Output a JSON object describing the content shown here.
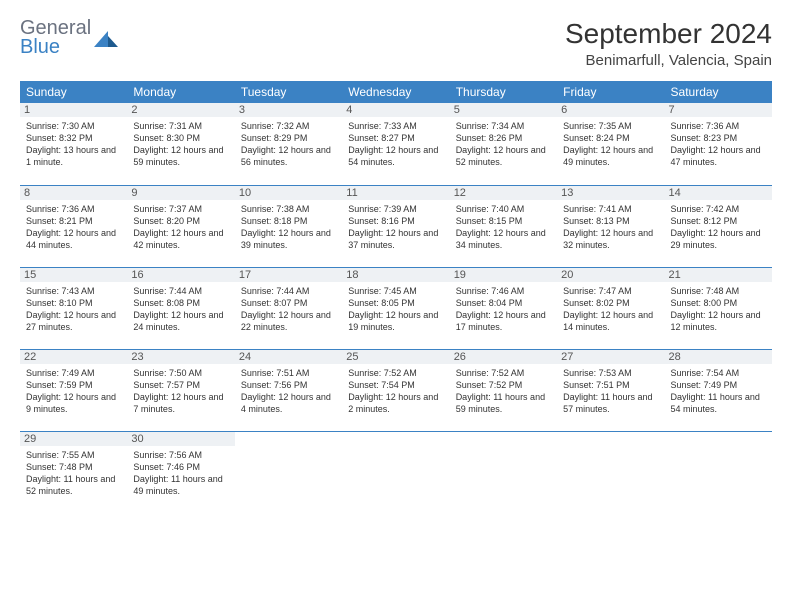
{
  "brand": {
    "general": "General",
    "blue": "Blue"
  },
  "title": "September 2024",
  "location": "Benimarfull, Valencia, Spain",
  "colors": {
    "header_bg": "#3b82c4",
    "header_fg": "#ffffff",
    "daynum_bg": "#eef1f4",
    "rule": "#3b82c4",
    "logo_gray": "#6b7280",
    "logo_blue": "#3b82c4"
  },
  "weekdays": [
    "Sunday",
    "Monday",
    "Tuesday",
    "Wednesday",
    "Thursday",
    "Friday",
    "Saturday"
  ],
  "first_day_index": 0,
  "days": [
    {
      "n": 1,
      "sunrise": "7:30 AM",
      "sunset": "8:32 PM",
      "daylight": "13 hours and 1 minute."
    },
    {
      "n": 2,
      "sunrise": "7:31 AM",
      "sunset": "8:30 PM",
      "daylight": "12 hours and 59 minutes."
    },
    {
      "n": 3,
      "sunrise": "7:32 AM",
      "sunset": "8:29 PM",
      "daylight": "12 hours and 56 minutes."
    },
    {
      "n": 4,
      "sunrise": "7:33 AM",
      "sunset": "8:27 PM",
      "daylight": "12 hours and 54 minutes."
    },
    {
      "n": 5,
      "sunrise": "7:34 AM",
      "sunset": "8:26 PM",
      "daylight": "12 hours and 52 minutes."
    },
    {
      "n": 6,
      "sunrise": "7:35 AM",
      "sunset": "8:24 PM",
      "daylight": "12 hours and 49 minutes."
    },
    {
      "n": 7,
      "sunrise": "7:36 AM",
      "sunset": "8:23 PM",
      "daylight": "12 hours and 47 minutes."
    },
    {
      "n": 8,
      "sunrise": "7:36 AM",
      "sunset": "8:21 PM",
      "daylight": "12 hours and 44 minutes."
    },
    {
      "n": 9,
      "sunrise": "7:37 AM",
      "sunset": "8:20 PM",
      "daylight": "12 hours and 42 minutes."
    },
    {
      "n": 10,
      "sunrise": "7:38 AM",
      "sunset": "8:18 PM",
      "daylight": "12 hours and 39 minutes."
    },
    {
      "n": 11,
      "sunrise": "7:39 AM",
      "sunset": "8:16 PM",
      "daylight": "12 hours and 37 minutes."
    },
    {
      "n": 12,
      "sunrise": "7:40 AM",
      "sunset": "8:15 PM",
      "daylight": "12 hours and 34 minutes."
    },
    {
      "n": 13,
      "sunrise": "7:41 AM",
      "sunset": "8:13 PM",
      "daylight": "12 hours and 32 minutes."
    },
    {
      "n": 14,
      "sunrise": "7:42 AM",
      "sunset": "8:12 PM",
      "daylight": "12 hours and 29 minutes."
    },
    {
      "n": 15,
      "sunrise": "7:43 AM",
      "sunset": "8:10 PM",
      "daylight": "12 hours and 27 minutes."
    },
    {
      "n": 16,
      "sunrise": "7:44 AM",
      "sunset": "8:08 PM",
      "daylight": "12 hours and 24 minutes."
    },
    {
      "n": 17,
      "sunrise": "7:44 AM",
      "sunset": "8:07 PM",
      "daylight": "12 hours and 22 minutes."
    },
    {
      "n": 18,
      "sunrise": "7:45 AM",
      "sunset": "8:05 PM",
      "daylight": "12 hours and 19 minutes."
    },
    {
      "n": 19,
      "sunrise": "7:46 AM",
      "sunset": "8:04 PM",
      "daylight": "12 hours and 17 minutes."
    },
    {
      "n": 20,
      "sunrise": "7:47 AM",
      "sunset": "8:02 PM",
      "daylight": "12 hours and 14 minutes."
    },
    {
      "n": 21,
      "sunrise": "7:48 AM",
      "sunset": "8:00 PM",
      "daylight": "12 hours and 12 minutes."
    },
    {
      "n": 22,
      "sunrise": "7:49 AM",
      "sunset": "7:59 PM",
      "daylight": "12 hours and 9 minutes."
    },
    {
      "n": 23,
      "sunrise": "7:50 AM",
      "sunset": "7:57 PM",
      "daylight": "12 hours and 7 minutes."
    },
    {
      "n": 24,
      "sunrise": "7:51 AM",
      "sunset": "7:56 PM",
      "daylight": "12 hours and 4 minutes."
    },
    {
      "n": 25,
      "sunrise": "7:52 AM",
      "sunset": "7:54 PM",
      "daylight": "12 hours and 2 minutes."
    },
    {
      "n": 26,
      "sunrise": "7:52 AM",
      "sunset": "7:52 PM",
      "daylight": "11 hours and 59 minutes."
    },
    {
      "n": 27,
      "sunrise": "7:53 AM",
      "sunset": "7:51 PM",
      "daylight": "11 hours and 57 minutes."
    },
    {
      "n": 28,
      "sunrise": "7:54 AM",
      "sunset": "7:49 PM",
      "daylight": "11 hours and 54 minutes."
    },
    {
      "n": 29,
      "sunrise": "7:55 AM",
      "sunset": "7:48 PM",
      "daylight": "11 hours and 52 minutes."
    },
    {
      "n": 30,
      "sunrise": "7:56 AM",
      "sunset": "7:46 PM",
      "daylight": "11 hours and 49 minutes."
    }
  ],
  "labels": {
    "sunrise": "Sunrise:",
    "sunset": "Sunset:",
    "daylight": "Daylight:"
  }
}
